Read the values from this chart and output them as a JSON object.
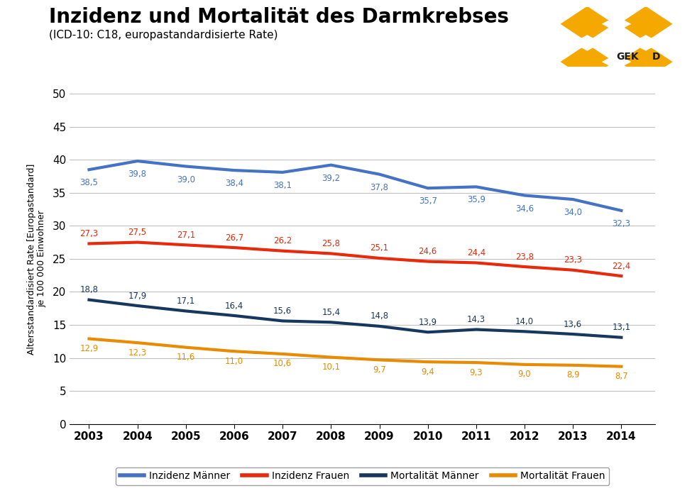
{
  "title": "Inzidenz und Mortalität des Darmkrebses",
  "subtitle": "(ICD-10: C18, europastandardisierte Rate)",
  "ylabel": "Altersstandardisiert Rate [Europastandard]\nje 100 000 Einwohner",
  "years": [
    2003,
    2004,
    2005,
    2006,
    2007,
    2008,
    2009,
    2010,
    2011,
    2012,
    2013,
    2014
  ],
  "inzidenz_maenner": [
    38.5,
    39.8,
    39.0,
    38.4,
    38.1,
    39.2,
    37.8,
    35.7,
    35.9,
    34.6,
    34.0,
    32.3
  ],
  "inzidenz_frauen": [
    27.3,
    27.5,
    27.1,
    26.7,
    26.2,
    25.8,
    25.1,
    24.6,
    24.4,
    23.8,
    23.3,
    22.4
  ],
  "mortalitaet_maenner": [
    18.8,
    17.9,
    17.1,
    16.4,
    15.6,
    15.4,
    14.8,
    13.9,
    14.3,
    14.0,
    13.6,
    13.1
  ],
  "mortalitaet_frauen": [
    12.9,
    12.3,
    11.6,
    11.0,
    10.6,
    10.1,
    9.7,
    9.4,
    9.3,
    9.0,
    8.9,
    8.7
  ],
  "color_inzidenz_maenner": "#4472C4",
  "color_inzidenz_frauen": "#E8290B",
  "color_mortalitaet_maenner": "#17375E",
  "color_mortalitaet_frauen": "#E88B00",
  "ylim": [
    0,
    50
  ],
  "yticks": [
    0,
    5,
    10,
    15,
    20,
    25,
    30,
    35,
    40,
    45,
    50
  ],
  "background_color": "#FFFFFF",
  "plot_bg_color": "#FFFFFF",
  "grid_color": "#C0C0C0",
  "legend_labels": [
    "Inzidenz Männer",
    "Inzidenz Frauen",
    "Mortalität Männer",
    "Mortalität Frauen"
  ],
  "line_width": 3.0,
  "label_fontsize": 8.5,
  "title_fontsize": 20,
  "subtitle_fontsize": 11,
  "axis_label_fontsize": 9,
  "tick_fontsize": 11,
  "logo_gold": "#F5A800",
  "logo_white": "#FFFFFF",
  "logo_dark": "#1A1A1A"
}
